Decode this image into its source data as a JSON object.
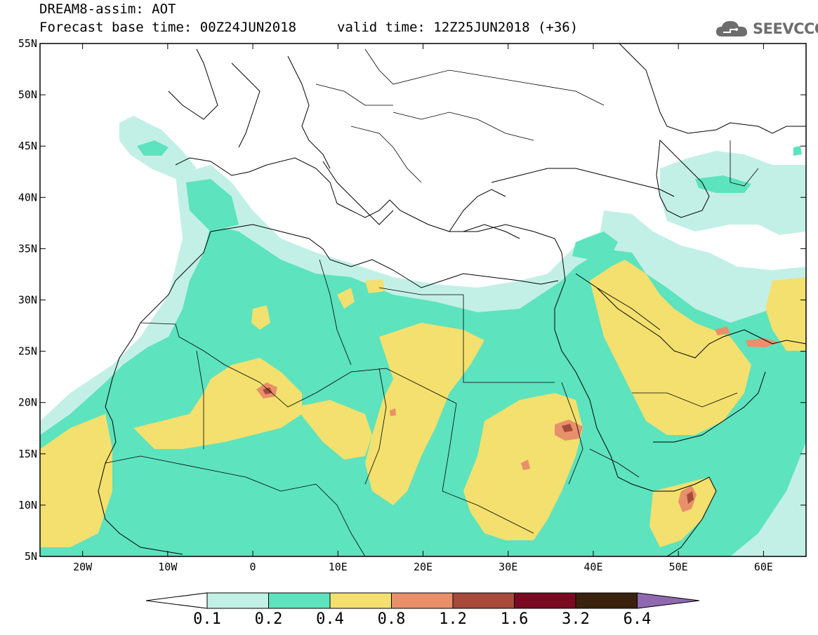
{
  "title": {
    "line1": "DREAM8-assim: AOT",
    "line2": "Forecast base time: 00Z24JUN2018",
    "valid": "valid time: 12Z25JUN2018 (+36)"
  },
  "logo": {
    "text": "SEEVCCC",
    "icon": "cloud-icon"
  },
  "map": {
    "lon_range": [
      -25,
      65
    ],
    "lat_range": [
      5,
      55
    ],
    "lat_ticks": [
      {
        "value": 55,
        "label": "55N"
      },
      {
        "value": 50,
        "label": "50N"
      },
      {
        "value": 45,
        "label": "45N"
      },
      {
        "value": 40,
        "label": "40N"
      },
      {
        "value": 35,
        "label": "35N"
      },
      {
        "value": 30,
        "label": "30N"
      },
      {
        "value": 25,
        "label": "25N"
      },
      {
        "value": 20,
        "label": "20N"
      },
      {
        "value": 15,
        "label": "15N"
      },
      {
        "value": 10,
        "label": "10N"
      },
      {
        "value": 5,
        "label": "5N"
      }
    ],
    "lon_ticks": [
      {
        "value": -20,
        "label": "20W"
      },
      {
        "value": -10,
        "label": "10W"
      },
      {
        "value": 0,
        "label": "0"
      },
      {
        "value": 10,
        "label": "10E"
      },
      {
        "value": 20,
        "label": "20E"
      },
      {
        "value": 30,
        "label": "30E"
      },
      {
        "value": 40,
        "label": "40E"
      },
      {
        "value": 50,
        "label": "50E"
      },
      {
        "value": 60,
        "label": "60E"
      }
    ]
  },
  "colorbar": {
    "colors": [
      "#c3f0e6",
      "#5de3bd",
      "#f3e06e",
      "#e8906a",
      "#a64a3c",
      "#7a0a22",
      "#3a220e"
    ],
    "low_color": "#ffffff",
    "high_color": "#8f69b0",
    "labels": [
      "0.1",
      "0.2",
      "0.4",
      "0.8",
      "1.2",
      "1.6",
      "3.2",
      "6.4"
    ]
  }
}
